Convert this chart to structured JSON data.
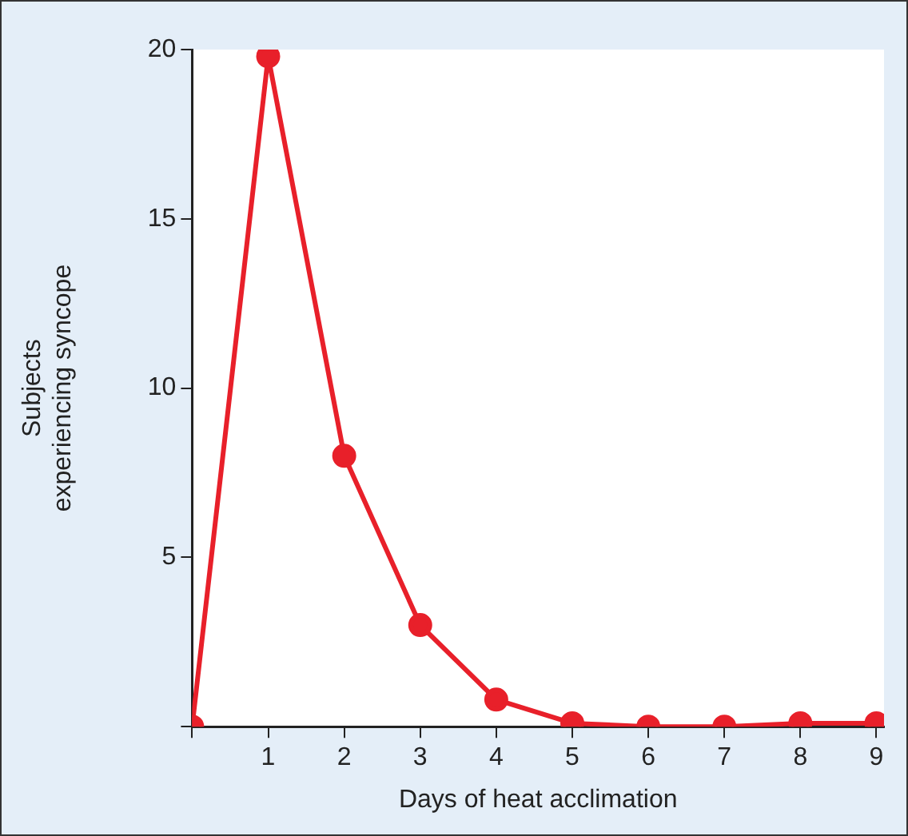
{
  "chart_data": {
    "type": "line",
    "xlabel": "Days of heat acclimation",
    "ylabel": "Subjects\nexperiencing syncope",
    "x": [
      0,
      1,
      2,
      3,
      4,
      5,
      6,
      7,
      8,
      9
    ],
    "values": [
      0,
      19.8,
      8,
      3,
      0.8,
      0.1,
      0,
      0,
      0.1,
      0.1
    ],
    "color": "#e8202a",
    "marker": "circle",
    "line_style": "solid",
    "grid": false,
    "legend": false,
    "xlim": [
      0,
      9.1
    ],
    "xticks": [
      {
        "value": 0,
        "label": null
      },
      1,
      2,
      3,
      4,
      5,
      6,
      7,
      8,
      9
    ],
    "ylim": [
      0,
      20
    ],
    "yticks": [
      {
        "value": 0,
        "label": null
      },
      5,
      10,
      15,
      20
    ]
  }
}
